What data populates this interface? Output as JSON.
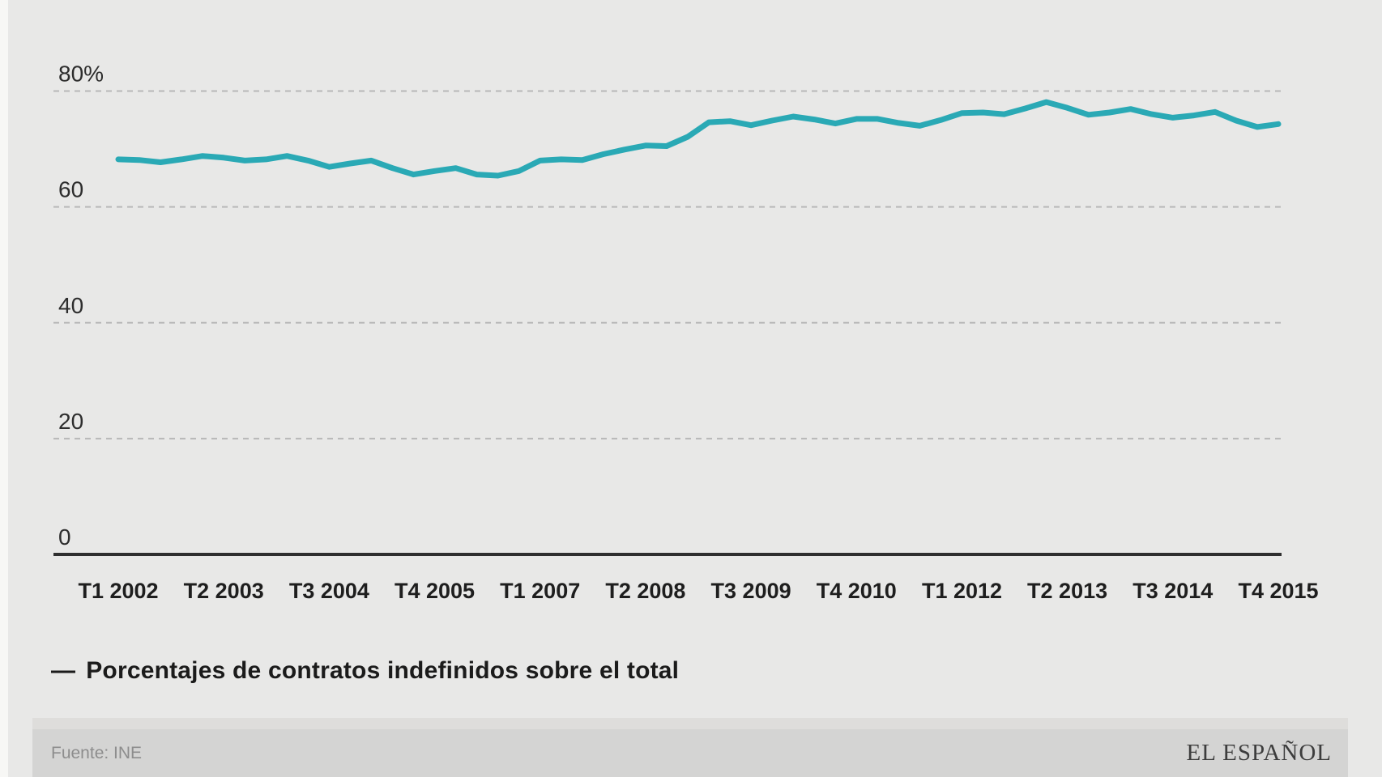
{
  "legend": {
    "dash": "—",
    "label": "Porcentajes de contratos indefinidos sobre el total"
  },
  "footer": {
    "source": "Fuente: INE",
    "brand": "EL ESPAÑOL"
  },
  "colors": {
    "background": "#e8e8e7",
    "left_strip": "#f7f7f5",
    "line": "#2aa9b5",
    "grid": "#b8b8b8",
    "axis": "#2f2f2f",
    "y_label_text": "#2d2d2d",
    "x_label_text": "#1e1e1e",
    "legend_text": "#1b1b1b",
    "footer_bar": "#d4d4d3",
    "footer_bar_top": "#dedddb",
    "source_text": "#8d8d8d",
    "brand_text": "#3d3d3d"
  },
  "chart_data": {
    "type": "line",
    "title": "",
    "xlabel": "",
    "ylabel": "",
    "ylim": [
      0,
      80
    ],
    "grid": "dashed-horizontal",
    "legend_position": "bottom-left",
    "x_tick_labels": [
      "T1 2002",
      "T2 2003",
      "T3 2004",
      "T4 2005",
      "T1 2007",
      "T2 2008",
      "T3 2009",
      "T4 2010",
      "T1 2012",
      "T2 2013",
      "T3 2014",
      "T4 2015"
    ],
    "x_tick_every": 5,
    "y_ticks": [
      {
        "label": "80%",
        "value": 80
      },
      {
        "label": "60",
        "value": 60
      },
      {
        "label": "40",
        "value": 40
      },
      {
        "label": "20",
        "value": 20
      },
      {
        "label": "0",
        "value": 0
      }
    ],
    "x_unit": "quarters from T1 2002 to T4 2015",
    "series": [
      {
        "name": "Porcentajes de contratos indefinidos sobre el total",
        "values": [
          68.2,
          68.1,
          67.7,
          68.2,
          68.8,
          68.5,
          68.0,
          68.2,
          68.8,
          68.0,
          66.9,
          67.5,
          68.0,
          66.7,
          65.6,
          66.2,
          66.7,
          65.6,
          65.4,
          66.2,
          68.0,
          68.2,
          68.1,
          69.1,
          69.9,
          70.6,
          70.5,
          72.1,
          74.6,
          74.8,
          74.1,
          74.9,
          75.6,
          75.1,
          74.4,
          75.2,
          75.2,
          74.5,
          74.0,
          75.0,
          76.2,
          76.3,
          76.0,
          77.0,
          78.1,
          77.1,
          75.9,
          76.3,
          76.9,
          76.0,
          75.4,
          75.8,
          76.4,
          74.9,
          73.8,
          74.3
        ]
      }
    ]
  }
}
